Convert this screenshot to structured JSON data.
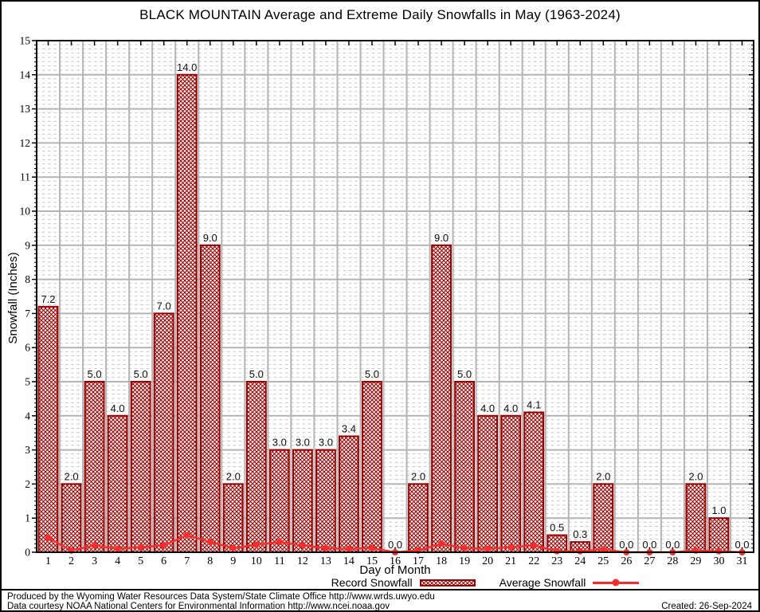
{
  "frame": {
    "footer_line1": "Produced by the Wyoming Water Resources Data System/State Climate Office http://www.wrds.uwyo.edu",
    "footer_line2": "Data courtesy NOAA National Centers for Environmental Information http://www.ncei.noaa.gov",
    "created": "Created: 26-Sep-2024"
  },
  "chart_data": {
    "type": "bar",
    "title": "BLACK MOUNTAIN Average and Extreme Daily Snowfalls in May (1963-2024)",
    "xlabel": "Day of Month",
    "ylabel": "Snowfall (Inches)",
    "ylim": [
      0,
      15
    ],
    "ytick_step": 1,
    "grid": true,
    "legend_position": "bottom",
    "categories": [
      1,
      2,
      3,
      4,
      5,
      6,
      7,
      8,
      9,
      10,
      11,
      12,
      13,
      14,
      15,
      16,
      17,
      18,
      19,
      20,
      21,
      22,
      23,
      24,
      25,
      26,
      27,
      28,
      29,
      30,
      31
    ],
    "series": [
      {
        "name": "Record Snowfall",
        "type": "bar",
        "color": "#9a0000",
        "values": [
          7.2,
          2.0,
          5.0,
          4.0,
          5.0,
          7.0,
          14.0,
          9.0,
          2.0,
          5.0,
          3.0,
          3.0,
          3.0,
          3.4,
          5.0,
          0.0,
          2.0,
          9.0,
          5.0,
          4.0,
          4.0,
          4.1,
          0.5,
          0.3,
          2.0,
          0.0,
          0.0,
          0.0,
          2.0,
          1.0,
          0.0
        ]
      },
      {
        "name": "Average Snowfall",
        "type": "line",
        "color": "#f72c2c",
        "values": [
          0.42,
          0.05,
          0.2,
          0.1,
          0.15,
          0.2,
          0.5,
          0.3,
          0.12,
          0.22,
          0.3,
          0.2,
          0.12,
          0.1,
          0.12,
          0.0,
          0.05,
          0.25,
          0.12,
          0.1,
          0.15,
          0.2,
          0.03,
          0.03,
          0.08,
          0.0,
          0.0,
          0.0,
          0.05,
          0.03,
          0.0
        ]
      }
    ],
    "colors": {
      "bar_outline": "#9a0000",
      "avg_line": "#f72c2c",
      "major_grid": "#b4b4b4",
      "minor_grid": "#c6c6c6",
      "axis": "#000000",
      "value_label": "#111111"
    }
  }
}
